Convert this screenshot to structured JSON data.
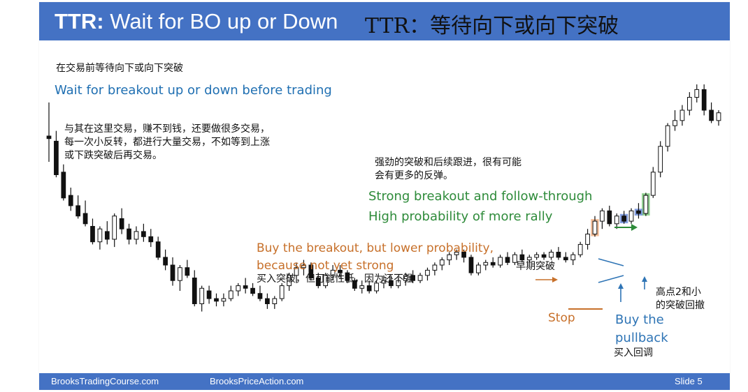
{
  "title": {
    "en_bold": "TTR:",
    "en_rest": " Wait for BO up or Down",
    "cn": "TTR：等待向下或向下突破"
  },
  "notes": {
    "cn_wait": "在交易前等待向下或向下突破",
    "en_wait": "Wait for breakout up or down before trading",
    "cn_para": [
      "与其在这里交易，赚不到钱，还要做很多交易，",
      "每一次小反转，都进行大量交易，不如等到上涨",
      "或下跌突破后再交易。"
    ],
    "cn_strong": [
      "强劲的突破和后续跟进，很有可能",
      "会有更多的反弹。"
    ],
    "en_strong": [
      "Strong breakout and follow-through",
      "High probability of more rally"
    ],
    "en_buy_bo": [
      "Buy the breakout, but lower probability,",
      "because not yet strong"
    ],
    "cn_buy_bo": "买入突破，但可能性低，因为还不强",
    "cn_early": "早期突破",
    "stop": "Stop",
    "en_pullback": [
      "Buy the",
      "pullback"
    ],
    "cn_pullback": "买入回调",
    "cn_high2": [
      "高点2和小",
      "的突破回撤"
    ]
  },
  "footer": {
    "left": "BrooksTradingCourse.com",
    "mid": "BrooksPriceAction.com",
    "slide": "Slide  5"
  },
  "colors": {
    "title_bar": "#4472c4",
    "green": "#2e8b3a",
    "orange": "#c7702a",
    "blue": "#2e74b5",
    "highlight_blue": "#5b7fd6",
    "highlight_green": "#6cc26c",
    "highlight_orange": "#f0a877"
  },
  "chart_data": {
    "type": "candlestick",
    "title": "",
    "xlabel": "",
    "ylabel": "",
    "ylim": [
      0,
      100
    ],
    "bars": [
      {
        "o": 80,
        "h": 93,
        "l": 70,
        "c": 79
      },
      {
        "o": 78,
        "h": 82,
        "l": 64,
        "c": 65
      },
      {
        "o": 66,
        "h": 69,
        "l": 55,
        "c": 56
      },
      {
        "o": 57,
        "h": 60,
        "l": 51,
        "c": 53
      },
      {
        "o": 53,
        "h": 57,
        "l": 48,
        "c": 49
      },
      {
        "o": 50,
        "h": 55,
        "l": 45,
        "c": 46
      },
      {
        "o": 45,
        "h": 48,
        "l": 38,
        "c": 39
      },
      {
        "o": 39,
        "h": 45,
        "l": 36,
        "c": 44
      },
      {
        "o": 43,
        "h": 47,
        "l": 38,
        "c": 40
      },
      {
        "o": 40,
        "h": 50,
        "l": 37,
        "c": 49
      },
      {
        "o": 48,
        "h": 52,
        "l": 42,
        "c": 44
      },
      {
        "o": 44,
        "h": 46,
        "l": 38,
        "c": 40
      },
      {
        "o": 40,
        "h": 45,
        "l": 38,
        "c": 43
      },
      {
        "o": 43,
        "h": 46,
        "l": 39,
        "c": 41
      },
      {
        "o": 41,
        "h": 44,
        "l": 37,
        "c": 39
      },
      {
        "o": 39,
        "h": 41,
        "l": 32,
        "c": 33
      },
      {
        "o": 33,
        "h": 36,
        "l": 28,
        "c": 30
      },
      {
        "o": 30,
        "h": 33,
        "l": 22,
        "c": 24
      },
      {
        "o": 24,
        "h": 30,
        "l": 20,
        "c": 29
      },
      {
        "o": 29,
        "h": 32,
        "l": 25,
        "c": 26
      },
      {
        "o": 25,
        "h": 28,
        "l": 14,
        "c": 15
      },
      {
        "o": 15,
        "h": 22,
        "l": 12,
        "c": 21
      },
      {
        "o": 20,
        "h": 22,
        "l": 15,
        "c": 17
      },
      {
        "o": 17,
        "h": 19,
        "l": 14,
        "c": 16
      },
      {
        "o": 16,
        "h": 19,
        "l": 14,
        "c": 17
      },
      {
        "o": 17,
        "h": 22,
        "l": 16,
        "c": 20
      },
      {
        "o": 20,
        "h": 23,
        "l": 18,
        "c": 22
      },
      {
        "o": 22,
        "h": 25,
        "l": 19,
        "c": 21
      },
      {
        "o": 21,
        "h": 23,
        "l": 18,
        "c": 19
      },
      {
        "o": 19,
        "h": 22,
        "l": 16,
        "c": 17
      },
      {
        "o": 17,
        "h": 19,
        "l": 13,
        "c": 15
      },
      {
        "o": 15,
        "h": 18,
        "l": 13,
        "c": 17
      },
      {
        "o": 17,
        "h": 23,
        "l": 16,
        "c": 22
      },
      {
        "o": 22,
        "h": 27,
        "l": 20,
        "c": 26
      },
      {
        "o": 26,
        "h": 31,
        "l": 23,
        "c": 29
      },
      {
        "o": 29,
        "h": 32,
        "l": 26,
        "c": 30
      },
      {
        "o": 30,
        "h": 31,
        "l": 24,
        "c": 25
      },
      {
        "o": 25,
        "h": 27,
        "l": 21,
        "c": 22
      },
      {
        "o": 22,
        "h": 27,
        "l": 21,
        "c": 26
      },
      {
        "o": 26,
        "h": 30,
        "l": 24,
        "c": 28
      },
      {
        "o": 28,
        "h": 30,
        "l": 25,
        "c": 27
      },
      {
        "o": 27,
        "h": 28,
        "l": 23,
        "c": 24
      },
      {
        "o": 24,
        "h": 25,
        "l": 20,
        "c": 21
      },
      {
        "o": 21,
        "h": 24,
        "l": 19,
        "c": 22
      },
      {
        "o": 22,
        "h": 24,
        "l": 19,
        "c": 20
      },
      {
        "o": 20,
        "h": 24,
        "l": 19,
        "c": 23
      },
      {
        "o": 23,
        "h": 26,
        "l": 21,
        "c": 24
      },
      {
        "o": 24,
        "h": 26,
        "l": 21,
        "c": 22
      },
      {
        "o": 22,
        "h": 25,
        "l": 21,
        "c": 24
      },
      {
        "o": 24,
        "h": 27,
        "l": 22,
        "c": 26
      },
      {
        "o": 26,
        "h": 28,
        "l": 23,
        "c": 24
      },
      {
        "o": 24,
        "h": 27,
        "l": 23,
        "c": 26
      },
      {
        "o": 26,
        "h": 29,
        "l": 24,
        "c": 28
      },
      {
        "o": 28,
        "h": 31,
        "l": 26,
        "c": 30
      },
      {
        "o": 30,
        "h": 33,
        "l": 28,
        "c": 32
      },
      {
        "o": 32,
        "h": 35,
        "l": 30,
        "c": 34
      },
      {
        "o": 34,
        "h": 36,
        "l": 32,
        "c": 35
      },
      {
        "o": 35,
        "h": 36,
        "l": 31,
        "c": 33
      },
      {
        "o": 33,
        "h": 34,
        "l": 26,
        "c": 27
      },
      {
        "o": 27,
        "h": 31,
        "l": 26,
        "c": 30
      },
      {
        "o": 30,
        "h": 32,
        "l": 28,
        "c": 31
      },
      {
        "o": 31,
        "h": 33,
        "l": 29,
        "c": 30
      },
      {
        "o": 30,
        "h": 34,
        "l": 29,
        "c": 33
      },
      {
        "o": 33,
        "h": 35,
        "l": 30,
        "c": 31
      },
      {
        "o": 31,
        "h": 35,
        "l": 30,
        "c": 34
      },
      {
        "o": 34,
        "h": 36,
        "l": 31,
        "c": 32
      },
      {
        "o": 32,
        "h": 34,
        "l": 31,
        "c": 33
      },
      {
        "o": 33,
        "h": 35,
        "l": 32,
        "c": 34
      },
      {
        "o": 34,
        "h": 35,
        "l": 32,
        "c": 33
      },
      {
        "o": 33,
        "h": 36,
        "l": 32,
        "c": 35
      },
      {
        "o": 35,
        "h": 37,
        "l": 32,
        "c": 33
      },
      {
        "o": 33,
        "h": 35,
        "l": 31,
        "c": 32
      },
      {
        "o": 32,
        "h": 35,
        "l": 30,
        "c": 34
      },
      {
        "o": 34,
        "h": 39,
        "l": 33,
        "c": 38
      },
      {
        "o": 38,
        "h": 44,
        "l": 36,
        "c": 42
      },
      {
        "o": 42,
        "h": 49,
        "l": 41,
        "c": 47
      },
      {
        "o": 47,
        "h": 52,
        "l": 44,
        "c": 51
      },
      {
        "o": 51,
        "h": 53,
        "l": 45,
        "c": 46
      },
      {
        "o": 46,
        "h": 50,
        "l": 44,
        "c": 49
      },
      {
        "o": 49,
        "h": 51,
        "l": 46,
        "c": 47
      },
      {
        "o": 47,
        "h": 52,
        "l": 46,
        "c": 51
      },
      {
        "o": 51,
        "h": 54,
        "l": 48,
        "c": 50
      },
      {
        "o": 50,
        "h": 58,
        "l": 49,
        "c": 57
      },
      {
        "o": 57,
        "h": 68,
        "l": 56,
        "c": 66
      },
      {
        "o": 66,
        "h": 78,
        "l": 64,
        "c": 76
      },
      {
        "o": 76,
        "h": 85,
        "l": 74,
        "c": 84
      },
      {
        "o": 84,
        "h": 90,
        "l": 82,
        "c": 86
      },
      {
        "o": 86,
        "h": 92,
        "l": 84,
        "c": 90
      },
      {
        "o": 90,
        "h": 97,
        "l": 88,
        "c": 95
      },
      {
        "o": 95,
        "h": 100,
        "l": 93,
        "c": 98
      },
      {
        "o": 98,
        "h": 100,
        "l": 88,
        "c": 90
      },
      {
        "o": 90,
        "h": 93,
        "l": 85,
        "c": 86
      },
      {
        "o": 86,
        "h": 90,
        "l": 84,
        "c": 89
      }
    ]
  }
}
